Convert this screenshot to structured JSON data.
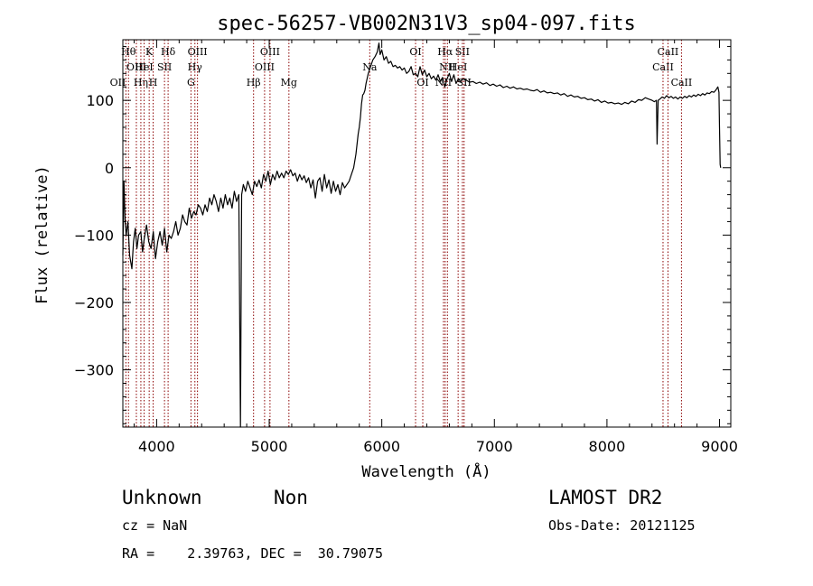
{
  "chart_data": {
    "type": "line",
    "title": "spec-56257-VB002N31V3_sp04-097.fits",
    "xlabel": "Wavelength (Å)",
    "ylabel": "Flux (relative)",
    "xlim": [
      3700,
      9100
    ],
    "ylim": [
      -385,
      190
    ],
    "xticks": [
      4000,
      5000,
      6000,
      7000,
      8000,
      9000
    ],
    "yticks": [
      100,
      0,
      -100,
      -200,
      -300
    ],
    "grid": false,
    "series": [
      {
        "color": "#000000",
        "points": [
          [
            3700,
            -130
          ],
          [
            3710,
            -20
          ],
          [
            3720,
            -80
          ],
          [
            3730,
            -100
          ],
          [
            3745,
            -80
          ],
          [
            3760,
            -130
          ],
          [
            3780,
            -150
          ],
          [
            3795,
            -110
          ],
          [
            3810,
            -90
          ],
          [
            3825,
            -120
          ],
          [
            3840,
            -100
          ],
          [
            3860,
            -95
          ],
          [
            3875,
            -125
          ],
          [
            3890,
            -105
          ],
          [
            3910,
            -85
          ],
          [
            3930,
            -110
          ],
          [
            3950,
            -120
          ],
          [
            3970,
            -95
          ],
          [
            3990,
            -135
          ],
          [
            4010,
            -110
          ],
          [
            4030,
            -95
          ],
          [
            4050,
            -115
          ],
          [
            4070,
            -90
          ],
          [
            4090,
            -125
          ],
          [
            4110,
            -100
          ],
          [
            4130,
            -105
          ],
          [
            4150,
            -95
          ],
          [
            4170,
            -80
          ],
          [
            4190,
            -100
          ],
          [
            4210,
            -90
          ],
          [
            4230,
            -70
          ],
          [
            4250,
            -80
          ],
          [
            4270,
            -85
          ],
          [
            4290,
            -60
          ],
          [
            4310,
            -75
          ],
          [
            4330,
            -65
          ],
          [
            4350,
            -70
          ],
          [
            4370,
            -55
          ],
          [
            4390,
            -60
          ],
          [
            4410,
            -70
          ],
          [
            4430,
            -55
          ],
          [
            4450,
            -65
          ],
          [
            4470,
            -45
          ],
          [
            4490,
            -55
          ],
          [
            4510,
            -40
          ],
          [
            4530,
            -50
          ],
          [
            4550,
            -65
          ],
          [
            4570,
            -45
          ],
          [
            4590,
            -60
          ],
          [
            4610,
            -40
          ],
          [
            4630,
            -55
          ],
          [
            4650,
            -45
          ],
          [
            4670,
            -60
          ],
          [
            4690,
            -35
          ],
          [
            4710,
            -50
          ],
          [
            4730,
            -40
          ],
          [
            4745,
            -385
          ],
          [
            4755,
            -40
          ],
          [
            4770,
            -25
          ],
          [
            4790,
            -35
          ],
          [
            4810,
            -20
          ],
          [
            4830,
            -30
          ],
          [
            4850,
            -40
          ],
          [
            4870,
            -20
          ],
          [
            4890,
            -28
          ],
          [
            4910,
            -18
          ],
          [
            4930,
            -30
          ],
          [
            4950,
            -10
          ],
          [
            4970,
            -20
          ],
          [
            4990,
            -5
          ],
          [
            5010,
            -25
          ],
          [
            5030,
            -10
          ],
          [
            5050,
            -18
          ],
          [
            5070,
            -5
          ],
          [
            5090,
            -15
          ],
          [
            5110,
            -8
          ],
          [
            5130,
            -15
          ],
          [
            5150,
            -5
          ],
          [
            5170,
            -10
          ],
          [
            5190,
            -3
          ],
          [
            5210,
            -12
          ],
          [
            5230,
            -8
          ],
          [
            5250,
            -20
          ],
          [
            5270,
            -10
          ],
          [
            5290,
            -18
          ],
          [
            5310,
            -12
          ],
          [
            5330,
            -22
          ],
          [
            5350,
            -15
          ],
          [
            5370,
            -30
          ],
          [
            5390,
            -18
          ],
          [
            5410,
            -45
          ],
          [
            5430,
            -20
          ],
          [
            5450,
            -15
          ],
          [
            5470,
            -35
          ],
          [
            5490,
            -10
          ],
          [
            5510,
            -30
          ],
          [
            5530,
            -18
          ],
          [
            5550,
            -38
          ],
          [
            5570,
            -20
          ],
          [
            5590,
            -35
          ],
          [
            5610,
            -25
          ],
          [
            5630,
            -40
          ],
          [
            5650,
            -22
          ],
          [
            5670,
            -30
          ],
          [
            5690,
            -25
          ],
          [
            5710,
            -20
          ],
          [
            5730,
            -10
          ],
          [
            5750,
            0
          ],
          [
            5770,
            20
          ],
          [
            5790,
            50
          ],
          [
            5800,
            60
          ],
          [
            5810,
            75
          ],
          [
            5820,
            95
          ],
          [
            5830,
            108
          ],
          [
            5840,
            110
          ],
          [
            5850,
            115
          ],
          [
            5860,
            125
          ],
          [
            5880,
            140
          ],
          [
            5900,
            150
          ],
          [
            5920,
            160
          ],
          [
            5940,
            165
          ],
          [
            5960,
            172
          ],
          [
            5975,
            185
          ],
          [
            5985,
            168
          ],
          [
            6000,
            175
          ],
          [
            6020,
            160
          ],
          [
            6040,
            165
          ],
          [
            6060,
            155
          ],
          [
            6080,
            158
          ],
          [
            6100,
            150
          ],
          [
            6120,
            152
          ],
          [
            6140,
            148
          ],
          [
            6160,
            150
          ],
          [
            6180,
            145
          ],
          [
            6200,
            148
          ],
          [
            6220,
            140
          ],
          [
            6240,
            143
          ],
          [
            6260,
            150
          ],
          [
            6280,
            138
          ],
          [
            6300,
            140
          ],
          [
            6320,
            135
          ],
          [
            6340,
            150
          ],
          [
            6360,
            138
          ],
          [
            6380,
            145
          ],
          [
            6400,
            135
          ],
          [
            6420,
            140
          ],
          [
            6440,
            132
          ],
          [
            6460,
            136
          ],
          [
            6480,
            130
          ],
          [
            6500,
            138
          ],
          [
            6520,
            128
          ],
          [
            6540,
            134
          ],
          [
            6560,
            120
          ],
          [
            6580,
            132
          ],
          [
            6600,
            140
          ],
          [
            6620,
            128
          ],
          [
            6640,
            138
          ],
          [
            6660,
            125
          ],
          [
            6680,
            132
          ],
          [
            6700,
            128
          ],
          [
            6720,
            132
          ],
          [
            6750,
            130
          ],
          [
            6780,
            127
          ],
          [
            6810,
            128
          ],
          [
            6840,
            125
          ],
          [
            6870,
            127
          ],
          [
            6900,
            124
          ],
          [
            6930,
            126
          ],
          [
            6960,
            122
          ],
          [
            6990,
            124
          ],
          [
            7020,
            121
          ],
          [
            7050,
            123
          ],
          [
            7080,
            119
          ],
          [
            7110,
            121
          ],
          [
            7140,
            118
          ],
          [
            7170,
            120
          ],
          [
            7200,
            117
          ],
          [
            7230,
            118
          ],
          [
            7260,
            116
          ],
          [
            7290,
            117
          ],
          [
            7320,
            115
          ],
          [
            7350,
            114
          ],
          [
            7380,
            116
          ],
          [
            7410,
            112
          ],
          [
            7440,
            114
          ],
          [
            7470,
            111
          ],
          [
            7500,
            112
          ],
          [
            7530,
            110
          ],
          [
            7560,
            111
          ],
          [
            7590,
            108
          ],
          [
            7620,
            110
          ],
          [
            7650,
            106
          ],
          [
            7680,
            108
          ],
          [
            7710,
            105
          ],
          [
            7740,
            106
          ],
          [
            7770,
            103
          ],
          [
            7800,
            104
          ],
          [
            7830,
            101
          ],
          [
            7860,
            102
          ],
          [
            7890,
            99
          ],
          [
            7920,
            101
          ],
          [
            7950,
            97
          ],
          [
            7980,
            99
          ],
          [
            8010,
            96
          ],
          [
            8040,
            97
          ],
          [
            8070,
            95
          ],
          [
            8100,
            96
          ],
          [
            8130,
            94
          ],
          [
            8160,
            97
          ],
          [
            8190,
            95
          ],
          [
            8220,
            99
          ],
          [
            8250,
            97
          ],
          [
            8280,
            101
          ],
          [
            8310,
            100
          ],
          [
            8340,
            104
          ],
          [
            8370,
            102
          ],
          [
            8400,
            100
          ],
          [
            8420,
            98
          ],
          [
            8440,
            100
          ],
          [
            8445,
            35
          ],
          [
            8455,
            100
          ],
          [
            8470,
            102
          ],
          [
            8490,
            105
          ],
          [
            8510,
            103
          ],
          [
            8530,
            107
          ],
          [
            8550,
            104
          ],
          [
            8570,
            106
          ],
          [
            8590,
            103
          ],
          [
            8610,
            105
          ],
          [
            8630,
            102
          ],
          [
            8650,
            105
          ],
          [
            8670,
            103
          ],
          [
            8690,
            106
          ],
          [
            8710,
            104
          ],
          [
            8730,
            107
          ],
          [
            8750,
            105
          ],
          [
            8770,
            108
          ],
          [
            8790,
            106
          ],
          [
            8810,
            109
          ],
          [
            8830,
            107
          ],
          [
            8850,
            110
          ],
          [
            8870,
            108
          ],
          [
            8890,
            111
          ],
          [
            8910,
            110
          ],
          [
            8930,
            113
          ],
          [
            8950,
            112
          ],
          [
            8970,
            116
          ],
          [
            8985,
            120
          ],
          [
            8995,
            112
          ],
          [
            9000,
            60
          ],
          [
            9005,
            5
          ],
          [
            9010,
            0
          ]
        ]
      }
    ],
    "line_color": "#8b0000",
    "lines": [
      {
        "x": 3727,
        "label": "OII",
        "row": 2,
        "align": "end"
      },
      {
        "x": 3750,
        "label": "Hθ",
        "row": 0,
        "align": "middle"
      },
      {
        "x": 3820,
        "label": "OIII",
        "row": 1,
        "align": "middle"
      },
      {
        "x": 3860,
        "label": "Hη",
        "row": 2,
        "align": "middle"
      },
      {
        "x": 3889,
        "label": "HeI",
        "row": 1,
        "align": "middle"
      },
      {
        "x": 3934,
        "label": "K",
        "row": 0,
        "align": "middle"
      },
      {
        "x": 3969,
        "label": "H",
        "row": 2,
        "align": "middle"
      },
      {
        "x": 4070,
        "label": "SII",
        "row": 1,
        "align": "middle"
      },
      {
        "x": 4102,
        "label": "Hδ",
        "row": 0,
        "align": "middle"
      },
      {
        "x": 4305,
        "label": "G",
        "row": 2,
        "align": "middle"
      },
      {
        "x": 4340,
        "label": "Hγ",
        "row": 1,
        "align": "middle"
      },
      {
        "x": 4363,
        "label": "OIII",
        "row": 0,
        "align": "middle"
      },
      {
        "x": 4861,
        "label": "Hβ",
        "row": 2,
        "align": "middle"
      },
      {
        "x": 4959,
        "label": "OIII",
        "row": 1,
        "align": "middle"
      },
      {
        "x": 5007,
        "label": "OIII",
        "row": 0,
        "align": "middle"
      },
      {
        "x": 5175,
        "label": "Mg",
        "row": 2,
        "align": "middle"
      },
      {
        "x": 5893,
        "label": "Na",
        "row": 1,
        "align": "middle"
      },
      {
        "x": 6300,
        "label": "OI",
        "row": 0,
        "align": "middle"
      },
      {
        "x": 6364,
        "label": "OI",
        "row": 2,
        "align": "middle"
      },
      {
        "x": 6548,
        "label": "NII",
        "row": 2,
        "align": "middle"
      },
      {
        "x": 6563,
        "label": "Hα",
        "row": 0,
        "align": "middle"
      },
      {
        "x": 6583,
        "label": "NII",
        "row": 1,
        "align": "middle"
      },
      {
        "x": 6678,
        "label": "HeI",
        "row": 1,
        "align": "middle"
      },
      {
        "x": 6716,
        "label": "SII",
        "row": 0,
        "align": "middle"
      },
      {
        "x": 6731,
        "label": "SII",
        "row": 2,
        "align": "middle"
      },
      {
        "x": 8498,
        "label": "CaII",
        "row": 1,
        "align": "middle"
      },
      {
        "x": 8542,
        "label": "CaII",
        "row": 0,
        "align": "middle"
      },
      {
        "x": 8662,
        "label": "CaII",
        "row": 2,
        "align": "middle"
      }
    ]
  },
  "info": {
    "class": "Unknown",
    "subclass": "Non",
    "survey": "LAMOST DR2",
    "cz": "cz = NaN",
    "obs_date": "Obs-Date: 20121125",
    "coords": "RA =    2.39763, DEC =  30.79075"
  }
}
